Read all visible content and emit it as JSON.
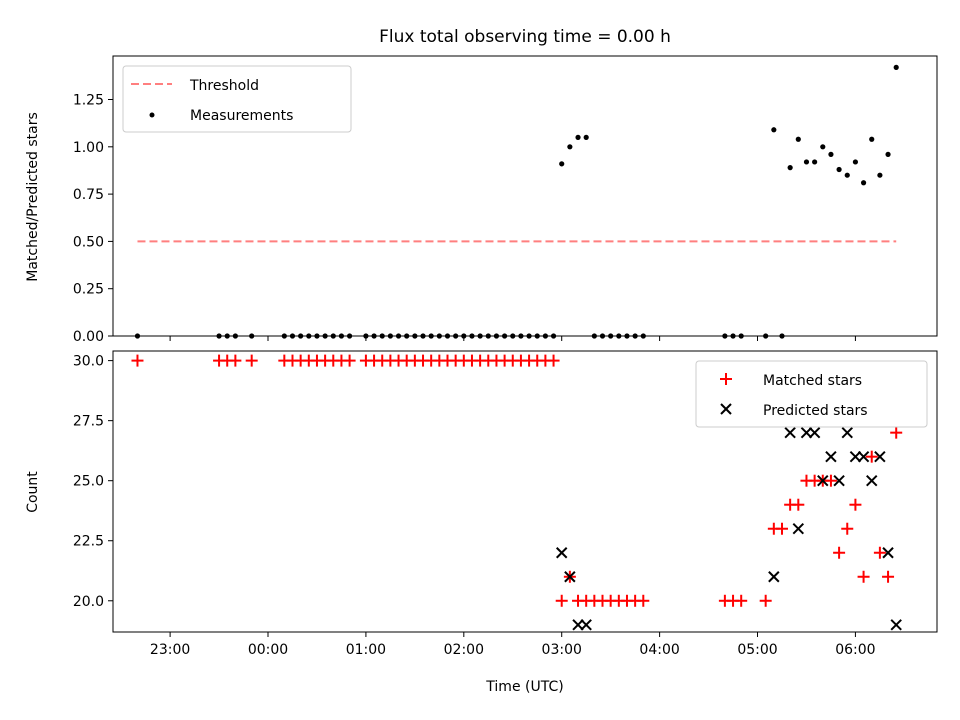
{
  "chart_data": [
    {
      "type": "scatter",
      "title": "Flux total observing time = 0.00 h",
      "xlabel": "",
      "ylabel": "Matched/Predicted stars",
      "xlim": [
        "22:25",
        "06:50"
      ],
      "ylim": [
        0,
        1.48
      ],
      "yticks": [
        "0.00",
        "0.25",
        "0.50",
        "0.75",
        "1.00",
        "1.25"
      ],
      "xtick_labels_shown": false,
      "legend": {
        "placement": "top-left",
        "entries": [
          "Threshold",
          "Measurements"
        ]
      },
      "colors": {
        "threshold": "#ff7f7f",
        "measurements": "#000000"
      },
      "series": [
        {
          "name": "Threshold",
          "kind": "dashed-line",
          "x": [
            "22:40",
            "06:25"
          ],
          "y": [
            0.5,
            0.5
          ]
        },
        {
          "name": "Measurements",
          "kind": "points",
          "x": [
            "22:40",
            "23:30",
            "23:35",
            "23:40",
            "23:50",
            "00:10",
            "00:15",
            "00:20",
            "00:25",
            "00:30",
            "00:35",
            "00:40",
            "00:45",
            "00:50",
            "01:00",
            "01:05",
            "01:10",
            "01:15",
            "01:20",
            "01:25",
            "01:30",
            "01:35",
            "01:40",
            "01:45",
            "01:50",
            "01:55",
            "02:00",
            "02:05",
            "02:10",
            "02:15",
            "02:20",
            "02:25",
            "02:30",
            "02:35",
            "02:40",
            "02:45",
            "02:50",
            "02:55",
            "03:00",
            "03:05",
            "03:10",
            "03:15",
            "03:20",
            "03:25",
            "03:30",
            "03:35",
            "03:40",
            "03:45",
            "03:50",
            "04:40",
            "04:45",
            "04:50",
            "05:05",
            "05:10",
            "05:15",
            "05:20",
            "05:25",
            "05:30",
            "05:35",
            "05:40",
            "05:45",
            "05:50",
            "05:55",
            "06:00",
            "06:05",
            "06:10",
            "06:15",
            "06:20",
            "06:25"
          ],
          "y": [
            0,
            0,
            0,
            0,
            0,
            0,
            0,
            0,
            0,
            0,
            0,
            0,
            0,
            0,
            0,
            0,
            0,
            0,
            0,
            0,
            0,
            0,
            0,
            0,
            0,
            0,
            0,
            0,
            0,
            0,
            0,
            0,
            0,
            0,
            0,
            0,
            0,
            0,
            0.91,
            1.0,
            1.05,
            1.05,
            0,
            0,
            0,
            0,
            0,
            0,
            0,
            0,
            0,
            0,
            0,
            1.09,
            0,
            0.89,
            1.04,
            0.92,
            0.92,
            1.0,
            0.96,
            0.88,
            0.85,
            0.92,
            0.81,
            1.04,
            0.85,
            0.96,
            1.42
          ]
        }
      ]
    },
    {
      "type": "scatter",
      "title": "",
      "xlabel": "Time (UTC)",
      "ylabel": "Count",
      "xlim": [
        "22:25",
        "06:50"
      ],
      "ylim": [
        18.7,
        30.4
      ],
      "xticks": [
        "23:00",
        "00:00",
        "01:00",
        "02:00",
        "03:00",
        "04:00",
        "05:00",
        "06:00"
      ],
      "yticks": [
        "20.0",
        "22.5",
        "25.0",
        "27.5",
        "30.0"
      ],
      "legend": {
        "placement": "top-right",
        "entries": [
          "Matched stars",
          "Predicted stars"
        ]
      },
      "colors": {
        "matched": "#ff0000",
        "predicted": "#000000"
      },
      "series": [
        {
          "name": "Matched stars",
          "marker": "+",
          "x": [
            "22:40",
            "23:30",
            "23:35",
            "23:40",
            "23:50",
            "00:10",
            "00:15",
            "00:20",
            "00:25",
            "00:30",
            "00:35",
            "00:40",
            "00:45",
            "00:50",
            "01:00",
            "01:05",
            "01:10",
            "01:15",
            "01:20",
            "01:25",
            "01:30",
            "01:35",
            "01:40",
            "01:45",
            "01:50",
            "01:55",
            "02:00",
            "02:05",
            "02:10",
            "02:15",
            "02:20",
            "02:25",
            "02:30",
            "02:35",
            "02:40",
            "02:45",
            "02:50",
            "02:55",
            "03:00",
            "03:05",
            "03:10",
            "03:15",
            "03:20",
            "03:25",
            "03:30",
            "03:35",
            "03:40",
            "03:45",
            "03:50",
            "04:40",
            "04:45",
            "04:50",
            "05:05",
            "05:10",
            "05:15",
            "05:20",
            "05:25",
            "05:30",
            "05:35",
            "05:40",
            "05:45",
            "05:50",
            "05:55",
            "06:00",
            "06:05",
            "06:10",
            "06:15",
            "06:20",
            "06:25"
          ],
          "y": [
            30,
            30,
            30,
            30,
            30,
            30,
            30,
            30,
            30,
            30,
            30,
            30,
            30,
            30,
            30,
            30,
            30,
            30,
            30,
            30,
            30,
            30,
            30,
            30,
            30,
            30,
            30,
            30,
            30,
            30,
            30,
            30,
            30,
            30,
            30,
            30,
            30,
            30,
            20,
            21,
            20,
            20,
            20,
            20,
            20,
            20,
            20,
            20,
            20,
            20,
            20,
            20,
            20,
            23,
            23,
            24,
            24,
            25,
            25,
            25,
            25,
            22,
            23,
            24,
            21,
            26,
            22,
            21,
            27
          ]
        },
        {
          "name": "Predicted stars",
          "marker": "x",
          "x": [
            "03:00",
            "03:05",
            "03:10",
            "03:15",
            "05:10",
            "05:20",
            "05:25",
            "05:30",
            "05:35",
            "05:40",
            "05:45",
            "05:50",
            "05:55",
            "06:00",
            "06:05",
            "06:10",
            "06:15",
            "06:20",
            "06:25"
          ],
          "y": [
            22,
            21,
            19,
            19,
            21,
            27,
            23,
            27,
            27,
            25,
            26,
            25,
            27,
            26,
            26,
            25,
            26,
            22,
            19
          ]
        }
      ]
    }
  ]
}
